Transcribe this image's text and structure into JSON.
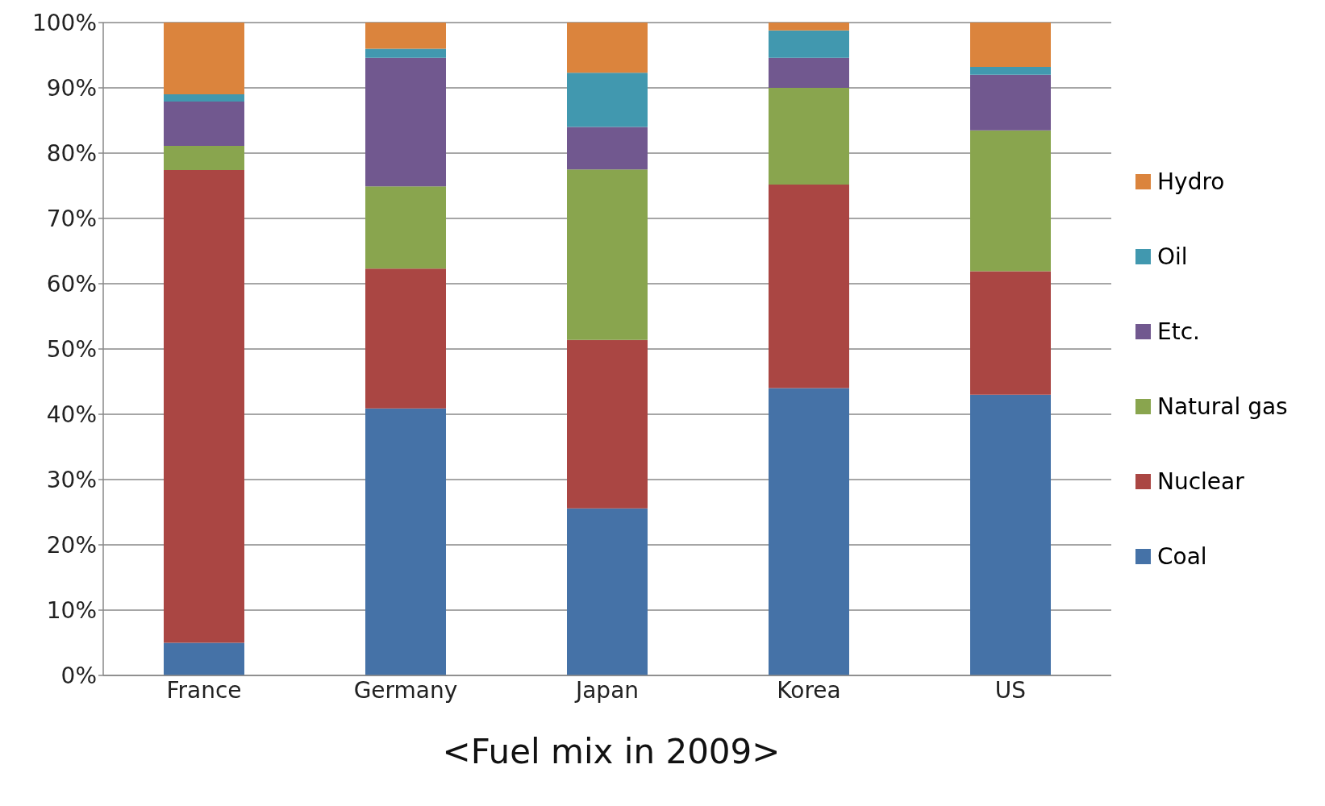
{
  "chart_data": {
    "type": "bar",
    "title": "<Fuel mix in 2009>",
    "stacked": true,
    "categories": [
      "France",
      "Germany",
      "Japan",
      "Korea",
      "US"
    ],
    "series": [
      {
        "name": "Coal",
        "color": "#4572a7",
        "values": [
          5,
          40.9,
          25.6,
          44,
          43
        ]
      },
      {
        "name": "Nuclear",
        "color": "#aa4643",
        "values": [
          72.4,
          21.4,
          25.8,
          31.2,
          18.9
        ]
      },
      {
        "name": "Natural gas",
        "color": "#89a54e",
        "values": [
          3.7,
          12.6,
          26.1,
          14.8,
          21.6
        ]
      },
      {
        "name": "Etc.",
        "color": "#71588f",
        "values": [
          6.8,
          19.7,
          6.5,
          4.6,
          8.5
        ]
      },
      {
        "name": "Oil",
        "color": "#4198af",
        "values": [
          1.1,
          1.4,
          8.3,
          4.2,
          1.2
        ]
      },
      {
        "name": "Hydro",
        "color": "#db843d",
        "values": [
          11,
          4,
          7.7,
          1.2,
          6.8
        ]
      }
    ],
    "ylim": [
      0,
      100
    ],
    "yticks": [
      {
        "value": 0,
        "label": "0%"
      },
      {
        "value": 10,
        "label": "10%"
      },
      {
        "value": 20,
        "label": "20%"
      },
      {
        "value": 30,
        "label": "30%"
      },
      {
        "value": 40,
        "label": "40%"
      },
      {
        "value": 50,
        "label": "50%"
      },
      {
        "value": 60,
        "label": "60%"
      },
      {
        "value": 70,
        "label": "70%"
      },
      {
        "value": 80,
        "label": "80%"
      },
      {
        "value": 90,
        "label": "90%"
      },
      {
        "value": 100,
        "label": "100%"
      }
    ],
    "grid": "y",
    "legend": "right"
  }
}
